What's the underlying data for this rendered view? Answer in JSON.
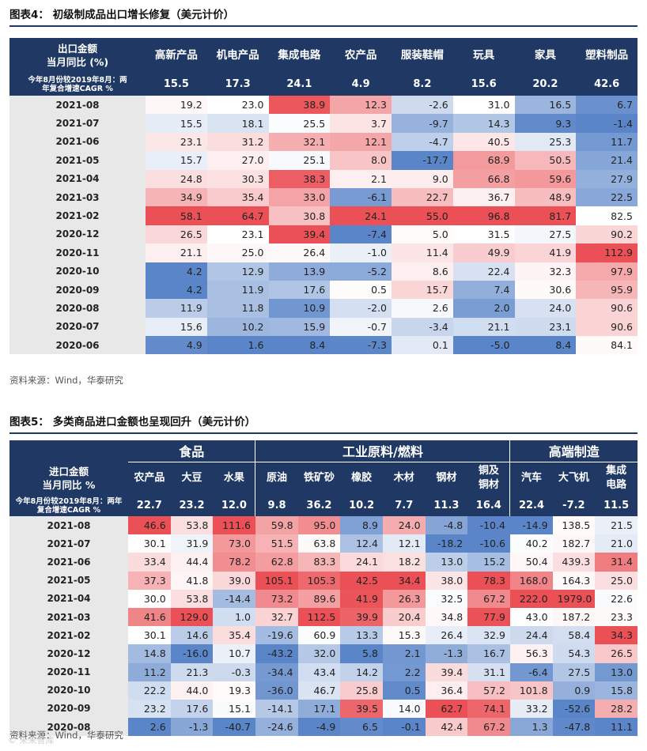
{
  "fig4": {
    "title": "图表4：  初级制成品出口增长修复（美元计价）",
    "corner": "出口金额\n当月同比 (%)",
    "cagr_label": "今年8月份较2019年8月：两\n年复合增速CAGR %",
    "categories": [
      "高新产品",
      "机电产品",
      "集成电路",
      "农产品",
      "服装鞋帽",
      "玩具",
      "家具",
      "塑料制品"
    ],
    "cagr": [
      "15.5",
      "17.3",
      "24.1",
      "4.9",
      "8.2",
      "15.6",
      "20.2",
      "42.6"
    ],
    "rows": [
      {
        "date": "2021-08",
        "values": [
          "19.2",
          "23.0",
          "38.9",
          "12.3",
          "-2.6",
          "31.0",
          "16.5",
          "6.7"
        ]
      },
      {
        "date": "2021-07",
        "values": [
          "15.5",
          "18.1",
          "25.5",
          "3.7",
          "-9.7",
          "14.3",
          "9.3",
          "-1.4"
        ]
      },
      {
        "date": "2021-06",
        "values": [
          "23.1",
          "31.2",
          "32.1",
          "12.1",
          "-4.7",
          "40.5",
          "25.3",
          "11.7"
        ]
      },
      {
        "date": "2021-05",
        "values": [
          "15.7",
          "27.0",
          "25.1",
          "8.0",
          "-17.7",
          "68.9",
          "50.5",
          "21.4"
        ]
      },
      {
        "date": "2021-04",
        "values": [
          "24.8",
          "30.3",
          "38.3",
          "2.1",
          "9.0",
          "66.8",
          "59.6",
          "27.9"
        ]
      },
      {
        "date": "2021-03",
        "values": [
          "34.9",
          "35.4",
          "33.0",
          "-6.1",
          "22.7",
          "36.7",
          "48.9",
          "22.5"
        ]
      },
      {
        "date": "2021-02",
        "values": [
          "58.1",
          "64.7",
          "30.8",
          "24.1",
          "55.0",
          "96.8",
          "81.7",
          "82.5"
        ]
      },
      {
        "date": "2020-12",
        "values": [
          "26.5",
          "23.1",
          "39.4",
          "-7.4",
          "5.0",
          "31.5",
          "27.5",
          "90.2"
        ]
      },
      {
        "date": "2020-11",
        "values": [
          "21.1",
          "25.0",
          "26.4",
          "-1.0",
          "11.4",
          "49.9",
          "41.9",
          "112.9"
        ]
      },
      {
        "date": "2020-10",
        "values": [
          "4.2",
          "12.9",
          "13.9",
          "-5.2",
          "8.6",
          "22.4",
          "32.3",
          "97.9"
        ]
      },
      {
        "date": "2020-09",
        "values": [
          "4.2",
          "11.9",
          "17.6",
          "0.5",
          "15.7",
          "7.4",
          "30.6",
          "95.9"
        ]
      },
      {
        "date": "2020-08",
        "values": [
          "11.9",
          "11.8",
          "10.9",
          "-2.0",
          "2.6",
          "2.0",
          "24.0",
          "90.6"
        ]
      },
      {
        "date": "2020-07",
        "values": [
          "15.6",
          "10.2",
          "15.9",
          "-0.7",
          "-3.4",
          "21.1",
          "23.1",
          "90.6"
        ]
      },
      {
        "date": "2020-06",
        "values": [
          "4.9",
          "1.6",
          "8.4",
          "-7.3",
          "0.1",
          "-5.0",
          "8.4",
          "84.1"
        ]
      }
    ],
    "source": "资料来源：Wind，华泰研究"
  },
  "fig5": {
    "title": "图表5：  多类商品进口金额也呈现回升（美元计价）",
    "groups": [
      {
        "label": "食品",
        "span": 3
      },
      {
        "label": "工业原料/燃料",
        "span": 6
      },
      {
        "label": "高端制造",
        "span": 3
      }
    ],
    "corner": "进口金额\n当月同比 %",
    "cagr_label": "今年8月份较2019年8月：两年\n复合增速CAGR %",
    "categories": [
      "农产品",
      "大豆",
      "水果",
      "原油",
      "铁矿砂",
      "橡胶",
      "木材",
      "钢材",
      "铜及\n铜材",
      "汽车",
      "大飞机",
      "集成\n电路"
    ],
    "cagr": [
      "22.7",
      "23.2",
      "12.0",
      "9.8",
      "36.2",
      "10.2",
      "7.7",
      "11.3",
      "16.4",
      "22.4",
      "-7.2",
      "11.5"
    ],
    "rows": [
      {
        "date": "2021-08",
        "values": [
          "46.6",
          "53.8",
          "111.6",
          "59.8",
          "95.0",
          "8.9",
          "24.0",
          "-4.8",
          "-10.4",
          "-14.9",
          "138.5",
          "21.5"
        ]
      },
      {
        "date": "2021-07",
        "values": [
          "30.1",
          "31.9",
          "73.0",
          "51.5",
          "63.8",
          "12.4",
          "12.1",
          "-18.2",
          "-10.6",
          "40.2",
          "182.7",
          "21.0"
        ]
      },
      {
        "date": "2021-06",
        "values": [
          "33.4",
          "44.4",
          "78.2",
          "62.8",
          "83.3",
          "24.1",
          "18.2",
          "13.0",
          "15.2",
          "50.4",
          "439.3",
          "31.4"
        ]
      },
      {
        "date": "2021-05",
        "values": [
          "37.3",
          "41.8",
          "39.0",
          "105.1",
          "105.3",
          "42.5",
          "34.4",
          "38.0",
          "78.3",
          "168.0",
          "164.3",
          "25.0"
        ]
      },
      {
        "date": "2021-04",
        "values": [
          "30.0",
          "53.8",
          "-14.4",
          "73.2",
          "89.6",
          "41.9",
          "26.3",
          "32.5",
          "67.2",
          "222.0",
          "1979.0",
          "22.6"
        ]
      },
      {
        "date": "2021-03",
        "values": [
          "41.6",
          "129.0",
          "1.0",
          "32.7",
          "112.5",
          "39.9",
          "20.4",
          "34.8",
          "77.9",
          "43.0",
          "187.2",
          "23.3"
        ]
      },
      {
        "date": "2021-02",
        "values": [
          "30.1",
          "14.6",
          "35.4",
          "-19.6",
          "60.9",
          "13.3",
          "15.3",
          "26.4",
          "32.9",
          "24.4",
          "58.4",
          "34.3"
        ]
      },
      {
        "date": "2020-12",
        "values": [
          "14.8",
          "-16.0",
          "10.7",
          "-43.2",
          "32.0",
          "5.8",
          "2.1",
          "-1.3",
          "16.7",
          "56.3",
          "54.3",
          "26.5"
        ]
      },
      {
        "date": "2020-11",
        "values": [
          "11.2",
          "21.3",
          "-0.3",
          "-34.4",
          "43.4",
          "14.2",
          "2.2",
          "39.4",
          "31.1",
          "-6.4",
          "27.5",
          "13.0"
        ]
      },
      {
        "date": "2020-10",
        "values": [
          "22.2",
          "44.0",
          "19.3",
          "-36.0",
          "46.7",
          "25.8",
          "0.5",
          "36.4",
          "57.2",
          "101.8",
          "0.9",
          "15.8"
        ]
      },
      {
        "date": "2020-09",
        "values": [
          "23.2",
          "17.6",
          "15.1",
          "-14.1",
          "17.1",
          "39.5",
          "14.0",
          "62.7",
          "74.1",
          "33.2",
          "-52.6",
          "28.2"
        ]
      },
      {
        "date": "2020-08",
        "values": [
          "2.6",
          "-1.3",
          "-40.7",
          "-24.6",
          "-4.9",
          "6.5",
          "-0.1",
          "42.4",
          "67.2",
          "1.3",
          "-47.8",
          "11.1"
        ]
      }
    ],
    "source": "资料来源：Wind，华泰研究"
  },
  "watermark": "© 未来智库",
  "colors": {
    "header": "#1f3864",
    "date_bg": "#e8e8e8",
    "hot": "#ea5055",
    "cold": "#5a85c8"
  }
}
